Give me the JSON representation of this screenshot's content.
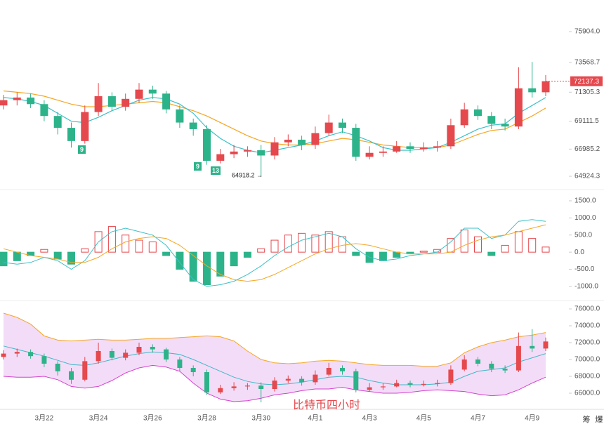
{
  "chart_data": [
    {
      "type": "candlestick",
      "categories": [
        null,
        null,
        null,
        "3月22",
        null,
        null,
        null,
        "3月24",
        null,
        null,
        null,
        "3月26",
        null,
        null,
        null,
        "3月28",
        null,
        null,
        null,
        "3月30",
        null,
        null,
        null,
        "4月1",
        null,
        null,
        null,
        "4月3",
        null,
        null,
        null,
        "4月5",
        null,
        null,
        null,
        "4月7",
        null,
        null,
        null,
        "4月9",
        null
      ],
      "open": [
        70300,
        70700,
        70900,
        70400,
        69500,
        68600,
        67600,
        69800,
        71000,
        70200,
        70800,
        71500,
        71200,
        70000,
        69000,
        68500,
        66100,
        66600,
        66800,
        66900,
        66500,
        67500,
        67700,
        67300,
        68200,
        69000,
        68600,
        66400,
        66700,
        66800,
        67200,
        67000,
        67100,
        67200,
        68800,
        70000,
        69500,
        68900,
        68700,
        71600,
        71300
      ],
      "high": [
        71100,
        71300,
        71200,
        70700,
        69800,
        69000,
        70300,
        72000,
        71300,
        71200,
        72000,
        71800,
        71400,
        70300,
        69300,
        68800,
        67000,
        67300,
        67200,
        67300,
        67900,
        68100,
        68000,
        68700,
        69600,
        69300,
        68900,
        67200,
        67200,
        67600,
        67500,
        67500,
        67600,
        69300,
        70500,
        70300,
        69800,
        69300,
        73200,
        73600,
        72600
      ],
      "low": [
        70000,
        70300,
        70100,
        69100,
        68100,
        67100,
        67400,
        69500,
        69900,
        69900,
        70500,
        70800,
        69700,
        68600,
        68000,
        65800,
        65900,
        66300,
        66400,
        64918.2,
        66200,
        67200,
        66900,
        67000,
        68000,
        68200,
        66100,
        66200,
        66400,
        66700,
        66700,
        66800,
        66800,
        67000,
        68600,
        69200,
        68500,
        68400,
        68500,
        70900,
        71000
      ],
      "close": [
        70700,
        70900,
        70400,
        69500,
        68600,
        67600,
        69800,
        71000,
        70200,
        70800,
        71500,
        71200,
        70000,
        69000,
        68500,
        66100,
        66600,
        66800,
        66900,
        66500,
        67500,
        67700,
        67300,
        68200,
        69000,
        68600,
        66400,
        66700,
        66800,
        67200,
        67000,
        67100,
        67200,
        68800,
        70000,
        69500,
        68900,
        68700,
        71600,
        71300,
        72137.3
      ],
      "up_color": "#e5484d",
      "down_color": "#2db38a",
      "ma_lines": [
        {
          "color": "#f5a623",
          "values": [
            71400,
            71300,
            71200,
            71000,
            70700,
            70400,
            70200,
            70200,
            70300,
            70400,
            70500,
            70600,
            70500,
            70200,
            69900,
            69500,
            69000,
            68500,
            68000,
            67600,
            67400,
            67300,
            67300,
            67400,
            67600,
            67800,
            67700,
            67500,
            67300,
            67200,
            67100,
            67100,
            67100,
            67300,
            67700,
            68100,
            68400,
            68500,
            69000,
            69500,
            70100
          ]
        },
        {
          "color": "#3cc0c8",
          "values": [
            70900,
            70800,
            70600,
            70300,
            69700,
            69100,
            69000,
            69400,
            69900,
            70300,
            70700,
            70900,
            70800,
            70400,
            69700,
            68600,
            67800,
            67200,
            66900,
            66700,
            66900,
            67100,
            67300,
            67600,
            68000,
            68300,
            68000,
            67600,
            67100,
            66900,
            66900,
            67000,
            67100,
            67500,
            68000,
            68500,
            68800,
            68900,
            69700,
            70300,
            70900
          ]
        }
      ],
      "ylim": [
        64180,
        77770
      ],
      "yticks": [
        64924.3,
        66985.2,
        69111.5,
        71305.3,
        73568.7,
        {
          "value": 75904,
          "label": "75904.0"
        }
      ],
      "annotations": [
        "9",
        "9",
        "13"
      ],
      "low_label": "64918.2 →"
    },
    {
      "type": "macd",
      "histogram": [
        -400,
        -250,
        -100,
        80,
        -200,
        -350,
        100,
        600,
        750,
        500,
        350,
        300,
        -100,
        -500,
        -850,
        -950,
        -700,
        -400,
        -150,
        100,
        350,
        500,
        550,
        500,
        600,
        450,
        -100,
        -300,
        -250,
        -150,
        -50,
        30,
        80,
        400,
        650,
        450,
        -100,
        200,
        600,
        400,
        150
      ],
      "lines": [
        {
          "color": "#3cc0c8",
          "values": [
            -300,
            -350,
            -300,
            -150,
            -250,
            -500,
            -250,
            300,
            600,
            700,
            600,
            500,
            200,
            -300,
            -800,
            -1000,
            -950,
            -850,
            -650,
            -400,
            -100,
            150,
            350,
            450,
            550,
            450,
            100,
            -150,
            -250,
            -200,
            -100,
            -50,
            0,
            300,
            700,
            700,
            400,
            500,
            900,
            950,
            900
          ]
        },
        {
          "color": "#f5a623",
          "values": [
            100,
            0,
            -100,
            -150,
            -200,
            -300,
            -300,
            -150,
            100,
            300,
            400,
            450,
            400,
            200,
            -100,
            -400,
            -650,
            -800,
            -850,
            -800,
            -650,
            -450,
            -250,
            -50,
            100,
            200,
            250,
            200,
            100,
            0,
            -50,
            -50,
            -50,
            0,
            200,
            350,
            450,
            500,
            600,
            700,
            800
          ]
        }
      ],
      "ylim": [
        -1350,
        1725
      ],
      "yticks": [
        {
          "value": -1000,
          "label": "-1000.0"
        },
        {
          "value": -500,
          "label": "-500.0"
        },
        {
          "value": 0,
          "label": "0.0"
        },
        {
          "value": 500,
          "label": "500.0"
        },
        {
          "value": 1000,
          "label": "1000.0"
        },
        {
          "value": 1500,
          "label": "1500.0"
        }
      ]
    },
    {
      "type": "bollinger",
      "upper": {
        "color": "#f5a623",
        "values": [
          75500,
          75000,
          74200,
          72800,
          72300,
          72200,
          72300,
          72400,
          72300,
          72300,
          72400,
          72500,
          72500,
          72600,
          72700,
          72800,
          72700,
          72200,
          71000,
          70000,
          69600,
          69500,
          69600,
          69800,
          69900,
          69800,
          69600,
          69400,
          69300,
          69300,
          69300,
          69200,
          69200,
          69600,
          70800,
          71500,
          72000,
          72300,
          72700,
          72900,
          73200
        ]
      },
      "mid": {
        "color": "#3fb8c8",
        "values": [
          71600,
          71200,
          70800,
          70400,
          69900,
          69400,
          69300,
          69600,
          70000,
          70400,
          70700,
          70900,
          70800,
          70600,
          70000,
          69300,
          68600,
          67900,
          67400,
          67100,
          67000,
          67100,
          67300,
          67600,
          67900,
          68000,
          67900,
          67500,
          67200,
          67000,
          67000,
          67000,
          67100,
          67300,
          68000,
          68600,
          68800,
          69000,
          69700,
          70200,
          70700
        ]
      },
      "lower": {
        "color": "#d63fd0",
        "values": [
          68000,
          67900,
          67900,
          68000,
          67600,
          66800,
          66600,
          66800,
          67500,
          68400,
          69000,
          69300,
          69100,
          68600,
          67200,
          66000,
          65300,
          65000,
          65100,
          65400,
          65800,
          66000,
          66300,
          66500,
          66500,
          66700,
          66400,
          66200,
          66000,
          66000,
          66100,
          66300,
          66400,
          66300,
          66200,
          65900,
          65700,
          65800,
          66400,
          67200,
          67900
        ]
      },
      "band_color": "#f3dcf7",
      "ylim": [
        64750,
        76833
      ],
      "yticks": [
        {
          "value": 66000,
          "label": "66000.0"
        },
        {
          "value": 68000,
          "label": "68000.0"
        },
        {
          "value": 70000,
          "label": "70000.0"
        },
        {
          "value": 72000,
          "label": "72000.0"
        },
        {
          "value": 74000,
          "label": "74000.0"
        },
        {
          "value": 76000,
          "label": "76000.0"
        }
      ],
      "watermark": "比特币四小时"
    }
  ],
  "corner_labels": [
    "筹",
    "爆"
  ]
}
